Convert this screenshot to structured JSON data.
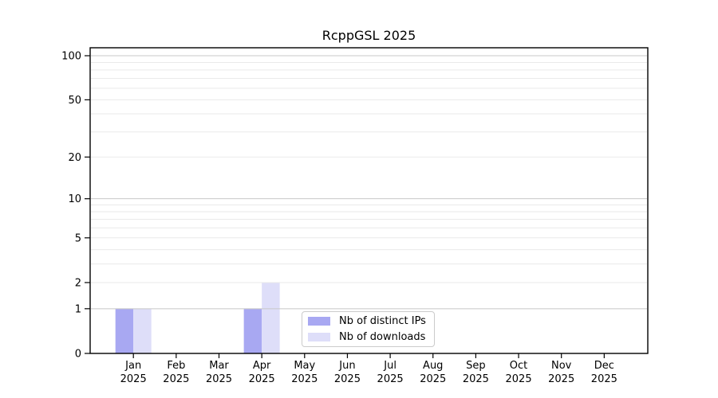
{
  "chart_data": {
    "type": "bar",
    "title": "RcppGSL 2025",
    "year_label": "2025",
    "categories": [
      "Jan",
      "Feb",
      "Mar",
      "Apr",
      "May",
      "Jun",
      "Jul",
      "Aug",
      "Sep",
      "Oct",
      "Nov",
      "Dec"
    ],
    "series": [
      {
        "name": "Nb of distinct IPs",
        "color": "#a8a8f2",
        "values": [
          1,
          0,
          0,
          1,
          0,
          0,
          0,
          0,
          0,
          0,
          0,
          0
        ]
      },
      {
        "name": "Nb of downloads",
        "color": "#dedef9",
        "values": [
          1,
          0,
          0,
          2,
          0,
          0,
          0,
          0,
          0,
          0,
          0,
          0
        ]
      }
    ],
    "yscale": "log1p",
    "ylim": [
      0,
      113
    ],
    "y_ticks": [
      0,
      1,
      2,
      5,
      10,
      20,
      50,
      100
    ],
    "grid": "on",
    "legend_position": "lower-center",
    "colors": {
      "grid_minor": "#eaeaea",
      "grid_major": "#c8c8c8",
      "axis": "#000000",
      "background": "#ffffff"
    }
  }
}
